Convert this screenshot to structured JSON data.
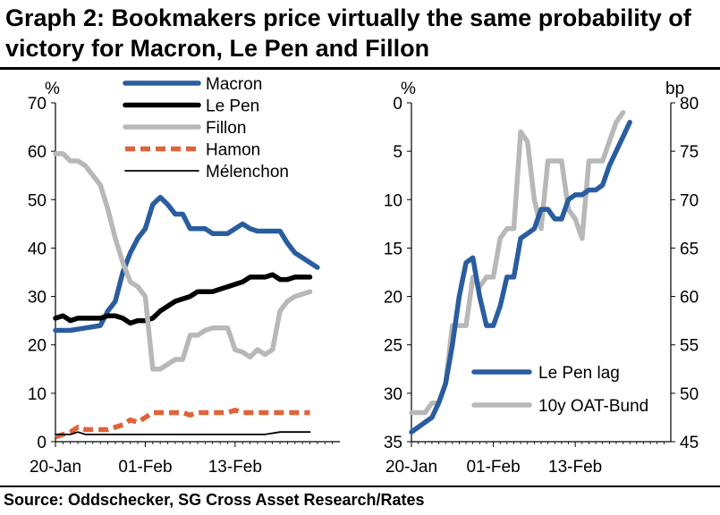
{
  "title": "Graph 2: Bookmakers price virtually the same probability of victory for Macron, Le Pen and Fillon",
  "source": "Source: Oddschecker, SG Cross Asset Research/Rates",
  "chart_data": [
    {
      "type": "line",
      "unit_label": "%",
      "ylim": [
        0,
        70
      ],
      "yticks": [
        0,
        10,
        20,
        30,
        40,
        50,
        60,
        70
      ],
      "xlim": [
        0,
        38
      ],
      "xtick_labels": [
        "20-Jan",
        "01-Feb",
        "13-Feb"
      ],
      "xtick_pos": [
        0,
        12,
        24
      ],
      "legend_position": "top-center",
      "series": [
        {
          "name": "Macron",
          "color": "#2a5d9f",
          "style": "solid",
          "width": "thick",
          "x": [
            0,
            2,
            4,
            6,
            7,
            8,
            9,
            10,
            11,
            12,
            13,
            14,
            15,
            16,
            17,
            18,
            19,
            20,
            21,
            22,
            23,
            24,
            25,
            26,
            27,
            28,
            29,
            30,
            31,
            32,
            33,
            34,
            35,
            36,
            37,
            38
          ],
          "values": [
            23,
            23,
            23.5,
            24,
            27,
            29,
            35,
            39,
            42,
            44,
            49,
            50.5,
            49,
            47,
            47,
            44,
            44,
            44,
            43,
            43,
            43,
            44,
            45,
            44,
            43.5,
            43.5,
            43.5,
            43.5,
            41,
            39,
            38,
            37,
            36,
            null,
            null,
            null
          ]
        },
        {
          "name": "Le Pen",
          "color": "#000000",
          "style": "solid",
          "width": "thick",
          "x": [
            0,
            1,
            2,
            3,
            4,
            5,
            6,
            7,
            8,
            9,
            10,
            11,
            12,
            13,
            14,
            15,
            16,
            17,
            18,
            19,
            20,
            21,
            22,
            23,
            24,
            25,
            26,
            27,
            28,
            29,
            30,
            31,
            32,
            33,
            34
          ],
          "values": [
            25.5,
            26,
            25,
            25.5,
            25.5,
            25.5,
            25.5,
            26,
            26,
            25.5,
            24.5,
            25,
            25,
            25.5,
            27,
            28,
            29,
            29.5,
            30,
            31,
            31,
            31,
            31.5,
            32,
            32.5,
            33,
            34,
            34,
            34,
            34.5,
            33.5,
            33.5,
            34,
            34,
            34
          ]
        },
        {
          "name": "Fillon",
          "color": "#b8b8b8",
          "style": "solid",
          "width": "thick",
          "x": [
            0,
            1,
            2,
            3,
            4,
            5,
            6,
            7,
            8,
            9,
            10,
            11,
            12,
            13,
            14,
            15,
            16,
            17,
            18,
            19,
            20,
            21,
            22,
            23,
            24,
            25,
            26,
            27,
            28,
            29,
            30,
            31,
            32,
            33,
            34
          ],
          "values": [
            59.5,
            59.5,
            58,
            58,
            57,
            55,
            53,
            48,
            42,
            37,
            33,
            32,
            30,
            15,
            15,
            16,
            17,
            17,
            22,
            22,
            23,
            23.5,
            23.5,
            23.5,
            19,
            18.5,
            17.5,
            19,
            18,
            19,
            27,
            29,
            30,
            30.5,
            31
          ]
        },
        {
          "name": "Hamon",
          "color": "#e0633a",
          "style": "dashed",
          "width": "thick",
          "x": [
            0,
            1,
            2,
            3,
            4,
            5,
            6,
            7,
            8,
            9,
            10,
            11,
            12,
            13,
            14,
            15,
            16,
            17,
            18,
            19,
            20,
            21,
            22,
            23,
            24,
            25,
            26,
            27,
            28,
            29,
            30,
            31,
            32,
            33,
            34
          ],
          "values": [
            1,
            1.5,
            2,
            3,
            2.5,
            2.5,
            2.5,
            2.5,
            3,
            3.5,
            4.5,
            4,
            5,
            6,
            6,
            6,
            6,
            6,
            5.5,
            6,
            6,
            6,
            6,
            6,
            6.5,
            6,
            6,
            6,
            6,
            6,
            6,
            6,
            6,
            6,
            6
          ]
        },
        {
          "name": "Mélenchon",
          "color": "#000000",
          "style": "solid",
          "width": "thin",
          "x": [
            0,
            2,
            3,
            4,
            6,
            8,
            10,
            12,
            14,
            16,
            18,
            20,
            22,
            24,
            26,
            28,
            30,
            32,
            34
          ],
          "values": [
            1.5,
            1.5,
            2,
            1.5,
            1.5,
            1.5,
            1.5,
            1.5,
            1.5,
            1.5,
            1.5,
            1.5,
            1.5,
            1.5,
            1.5,
            1.5,
            2,
            2,
            2
          ]
        }
      ]
    },
    {
      "type": "line",
      "unit_label_left": "%",
      "unit_label_right": "bp",
      "ylim_left": [
        0,
        35
      ],
      "ylim_left_inverted": true,
      "yticks_left": [
        0,
        5,
        10,
        15,
        20,
        25,
        30,
        35
      ],
      "ylim_right": [
        45,
        80
      ],
      "yticks_right": [
        45,
        50,
        55,
        60,
        65,
        70,
        75,
        80
      ],
      "xlim": [
        0,
        38
      ],
      "xtick_labels": [
        "20-Jan",
        "01-Feb",
        "13-Feb"
      ],
      "xtick_pos": [
        0,
        12,
        24
      ],
      "legend_position": "bottom-right",
      "series": [
        {
          "name": "Le Pen lag",
          "color": "#2a5d9f",
          "axis": "left",
          "x": [
            0,
            1,
            2,
            3,
            4,
            5,
            6,
            7,
            8,
            9,
            10,
            11,
            12,
            13,
            14,
            15,
            16,
            17,
            18,
            19,
            20,
            21,
            22,
            23,
            24,
            25,
            26,
            27,
            28,
            29,
            30,
            31,
            32,
            33,
            34
          ],
          "values": [
            34,
            33.5,
            33,
            32.5,
            31,
            29,
            25,
            20,
            16.5,
            16,
            20,
            23,
            23,
            21,
            18,
            18,
            14,
            13.5,
            13,
            11,
            11,
            12,
            12,
            10,
            9.5,
            9.5,
            9,
            9,
            8.5,
            6.5,
            5,
            3.5,
            2,
            null,
            null
          ]
        },
        {
          "name": "10y OAT-Bund",
          "color": "#b8b8b8",
          "axis": "right",
          "x": [
            0,
            1,
            2,
            3,
            4,
            5,
            6,
            7,
            8,
            9,
            10,
            11,
            12,
            13,
            14,
            15,
            16,
            17,
            18,
            19,
            20,
            21,
            22,
            23,
            24,
            25,
            26,
            27,
            28,
            29,
            30,
            31,
            32,
            33,
            34
          ],
          "values": [
            48,
            48,
            48,
            49,
            49,
            51,
            57,
            57,
            57,
            62,
            61,
            62,
            62,
            66,
            67,
            67,
            77,
            76,
            70,
            67,
            74,
            74,
            74,
            69,
            68,
            66,
            74,
            74,
            74,
            76,
            78,
            79,
            null,
            null,
            null
          ]
        }
      ]
    }
  ]
}
